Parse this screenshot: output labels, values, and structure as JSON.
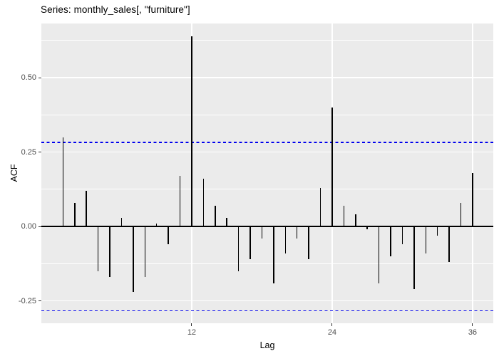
{
  "chart_data": {
    "type": "bar",
    "title": "Series: monthly_sales[, \"furniture\"]",
    "xlabel": "Lag",
    "ylabel": "ACF",
    "x": [
      1,
      2,
      3,
      4,
      5,
      6,
      7,
      8,
      9,
      10,
      11,
      12,
      13,
      14,
      15,
      16,
      17,
      18,
      19,
      20,
      21,
      22,
      23,
      24,
      25,
      26,
      27,
      28,
      29,
      30,
      31,
      32,
      33,
      34,
      35,
      36
    ],
    "values": [
      0.3,
      0.08,
      0.12,
      -0.15,
      -0.17,
      0.03,
      -0.22,
      -0.17,
      0.01,
      -0.06,
      0.17,
      0.64,
      0.16,
      0.07,
      0.03,
      -0.15,
      -0.11,
      -0.04,
      -0.19,
      -0.09,
      -0.04,
      -0.11,
      0.13,
      0.4,
      0.07,
      0.04,
      -0.01,
      -0.19,
      -0.1,
      -0.06,
      -0.21,
      -0.09,
      -0.03,
      -0.12,
      0.08,
      0.18
    ],
    "conf_bounds": [
      0.283,
      -0.283
    ],
    "x_tick_values": [
      12,
      24,
      36
    ],
    "x_tick_labels": [
      "12",
      "24",
      "36"
    ],
    "y_tick_values": [
      0.5,
      0.25,
      0.0,
      -0.25
    ],
    "y_tick_labels": [
      "0.50",
      "0.25",
      "0.00",
      "-0.25"
    ],
    "y_minor_values": [
      0.625,
      0.375,
      0.125,
      -0.125
    ],
    "xlim": [
      -0.85,
      37.77
    ],
    "ylim": [
      -0.325,
      0.682
    ],
    "grid": true,
    "legend": false,
    "colors": {
      "panel_background": "#EBEBEB",
      "gridline": "#FFFFFF",
      "bar": "#000000",
      "zero_line": "#000000",
      "confidence_line": "#0000EE",
      "tick_label": "#4D4D4D",
      "title": "#000000"
    }
  }
}
